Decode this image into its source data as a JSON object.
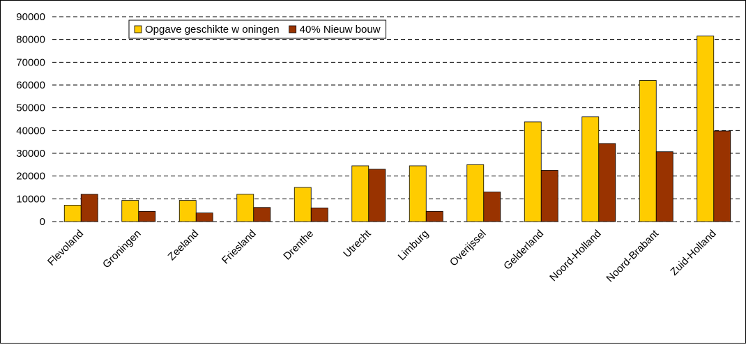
{
  "chart_data": {
    "type": "bar",
    "categories": [
      "Flevoland",
      "Groningen",
      "Zeeland",
      "Friesland",
      "Drenthe",
      "Utrecht",
      "Limburg",
      "Overijssel",
      "Gelderland",
      "Noord-Holland",
      "Noord-Brabant",
      "Zuid-Holland"
    ],
    "series": [
      {
        "name": "Opgave geschikte w oningen",
        "color": "#ffcc00",
        "values": [
          7200,
          9300,
          9300,
          12000,
          15000,
          24500,
          24500,
          25000,
          43800,
          46000,
          62000,
          81500
        ]
      },
      {
        "name": "40% Nieuw bouw",
        "color": "#993300",
        "values": [
          12000,
          4500,
          3800,
          6200,
          6000,
          23000,
          4500,
          13000,
          22500,
          34300,
          30700,
          39800
        ]
      }
    ],
    "ylim": [
      0,
      90000
    ],
    "yticks": [
      0,
      10000,
      20000,
      30000,
      40000,
      50000,
      60000,
      70000,
      80000,
      90000
    ],
    "grid": true,
    "legend": "top"
  }
}
